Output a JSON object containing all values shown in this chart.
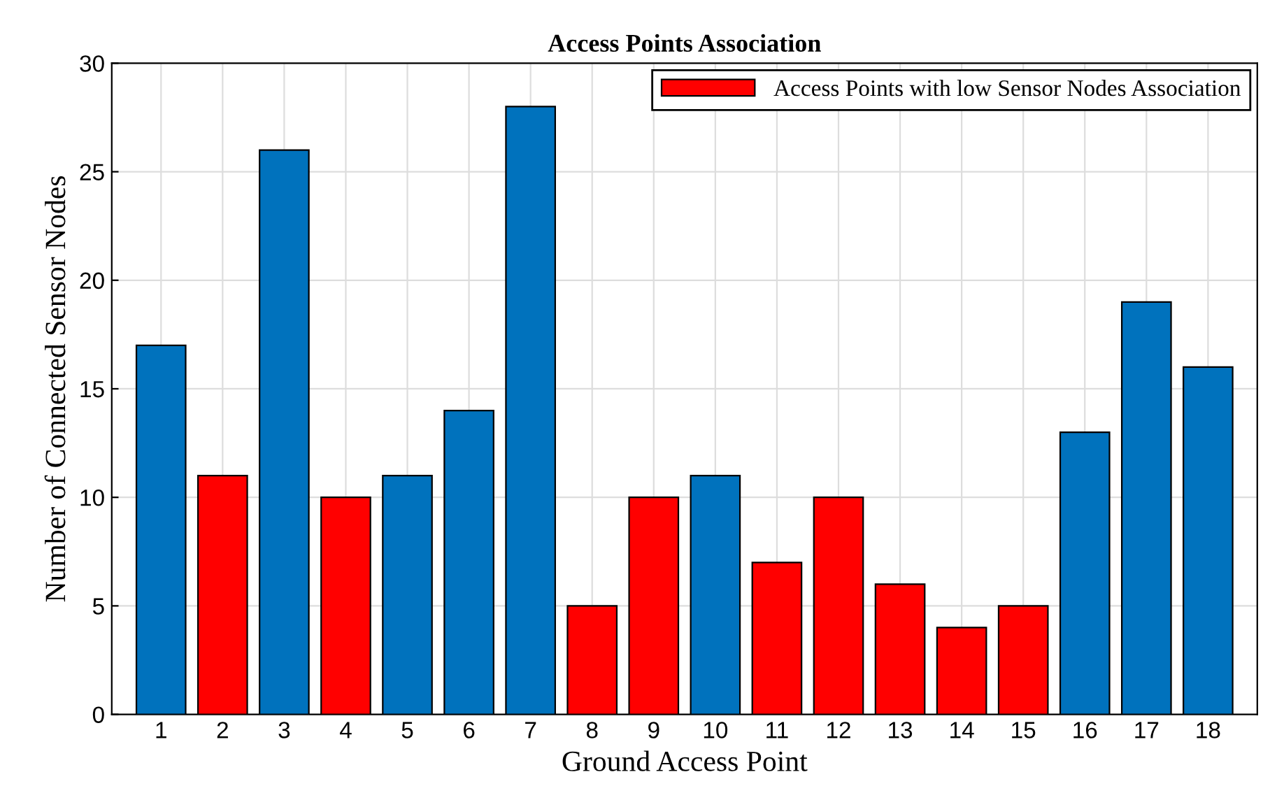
{
  "chart_data": {
    "type": "bar",
    "title": "Access Points Association",
    "xlabel": "Ground Access Point",
    "ylabel": "Number of Connected Sensor Nodes",
    "categories": [
      "1",
      "2",
      "3",
      "4",
      "5",
      "6",
      "7",
      "8",
      "9",
      "10",
      "11",
      "12",
      "13",
      "14",
      "15",
      "16",
      "17",
      "18"
    ],
    "series": [
      {
        "color": "#0072bd",
        "values": [
          17,
          null,
          26,
          null,
          11,
          14,
          28,
          null,
          null,
          11,
          null,
          null,
          null,
          null,
          null,
          13,
          19,
          16
        ]
      },
      {
        "name": "Access Points with low Sensor Nodes Association",
        "color": "#ff0000",
        "values": [
          null,
          11,
          null,
          10,
          null,
          null,
          null,
          5,
          10,
          null,
          7,
          10,
          6,
          4,
          5,
          null,
          null,
          null
        ]
      }
    ],
    "ylim": [
      0,
      30
    ],
    "yticks": [
      0,
      5,
      10,
      15,
      20,
      25,
      30
    ],
    "grid": true,
    "legend": "top right"
  }
}
